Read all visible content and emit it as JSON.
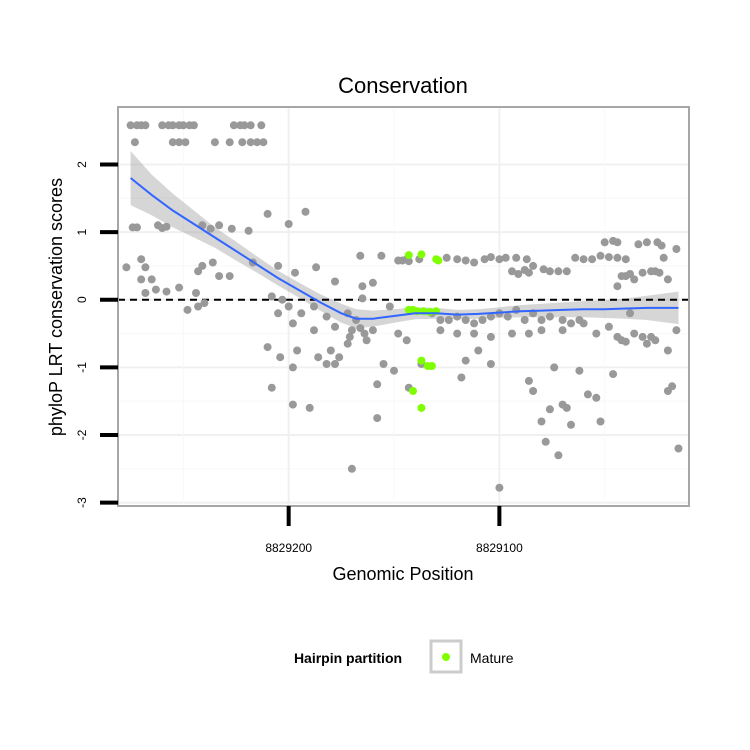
{
  "chart_data": {
    "type": "scatter",
    "title": "Conservation",
    "xlabel": "Genomic Position",
    "ylabel": "phyloP LRT conservation scores",
    "xlim": [
      8829281,
      8829010
    ],
    "ylim": [
      -3.05,
      2.85
    ],
    "x_reversed": true,
    "x_ticks": [
      8829200,
      8829100
    ],
    "x_tick_labels": [
      "8829200",
      "8829100"
    ],
    "y_ticks": [
      -3,
      -2,
      -1,
      0,
      1,
      2
    ],
    "y_tick_labels": [
      "-3",
      "-2",
      "-1",
      "0",
      "1",
      "2"
    ],
    "grid": true,
    "reference_line": {
      "y": 0,
      "style": "dashed",
      "color": "#000000"
    },
    "legend": {
      "title": "Hairpin partition",
      "position": "bottom",
      "entries": [
        {
          "label": "Mature",
          "color": "#7fff00"
        }
      ]
    },
    "series": [
      {
        "color": "#999999",
        "points": [
          [
            8829275,
            2.58
          ],
          [
            8829272,
            2.58
          ],
          [
            8829270,
            2.58
          ],
          [
            8829268,
            2.58
          ],
          [
            8829260,
            2.58
          ],
          [
            8829257,
            2.58
          ],
          [
            8829255,
            2.58
          ],
          [
            8829252,
            2.58
          ],
          [
            8829250,
            2.58
          ],
          [
            8829247,
            2.58
          ],
          [
            8829245,
            2.58
          ],
          [
            8829226,
            2.58
          ],
          [
            8829223,
            2.58
          ],
          [
            8829221,
            2.58
          ],
          [
            8829218,
            2.58
          ],
          [
            8829213,
            2.58
          ],
          [
            8829273,
            2.33
          ],
          [
            8829255,
            2.33
          ],
          [
            8829252,
            2.33
          ],
          [
            8829249,
            2.33
          ],
          [
            8829235,
            2.33
          ],
          [
            8829228,
            2.33
          ],
          [
            8829222,
            2.33
          ],
          [
            8829218,
            2.33
          ],
          [
            8829215,
            2.33
          ],
          [
            8829212,
            2.33
          ],
          [
            8829274,
            1.07
          ],
          [
            8829272,
            1.07
          ],
          [
            8829262,
            1.1
          ],
          [
            8829258,
            1.08
          ],
          [
            8829241,
            1.1
          ],
          [
            8829237,
            1.05
          ],
          [
            8829233,
            1.1
          ],
          [
            8829227,
            1.05
          ],
          [
            8829219,
            1.02
          ],
          [
            8829260,
            1.06
          ],
          [
            8829277,
            0.48
          ],
          [
            8829270,
            0.6
          ],
          [
            8829268,
            0.48
          ],
          [
            8829265,
            0.3
          ],
          [
            8829243,
            0.42
          ],
          [
            8829241,
            0.5
          ],
          [
            8829236,
            0.55
          ],
          [
            8829233,
            0.35
          ],
          [
            8829228,
            0.35
          ],
          [
            8829217,
            0.55
          ],
          [
            8829268,
            0.1
          ],
          [
            8829263,
            0.15
          ],
          [
            8829258,
            0.12
          ],
          [
            8829252,
            0.18
          ],
          [
            8829244,
            0.1
          ],
          [
            8829240,
            -0.05
          ],
          [
            8829243,
            -0.1
          ],
          [
            8829248,
            -0.15
          ],
          [
            8829270,
            0.3
          ],
          [
            8829210,
            1.27
          ],
          [
            8829192,
            1.3
          ],
          [
            8829200,
            1.12
          ],
          [
            8829205,
            0.5
          ],
          [
            8829197,
            0.4
          ],
          [
            8829187,
            0.48
          ],
          [
            8829178,
            0.27
          ],
          [
            8829165,
            0.2
          ],
          [
            8829160,
            0.25
          ],
          [
            8829166,
            0.65
          ],
          [
            8829208,
            0.05
          ],
          [
            8829203,
            0.0
          ],
          [
            8829200,
            -0.1
          ],
          [
            8829194,
            -0.2
          ],
          [
            8829188,
            -0.1
          ],
          [
            8829182,
            -0.25
          ],
          [
            8829178,
            -0.4
          ],
          [
            8829172,
            -0.2
          ],
          [
            8829168,
            -0.3
          ],
          [
            8829164,
            -0.5
          ],
          [
            8829170,
            -0.45
          ],
          [
            8829205,
            -0.2
          ],
          [
            8829198,
            -0.35
          ],
          [
            8829188,
            -0.45
          ],
          [
            8829180,
            -0.75
          ],
          [
            8829176,
            -0.85
          ],
          [
            8829172,
            -0.65
          ],
          [
            8829210,
            -0.7
          ],
          [
            8829204,
            -0.85
          ],
          [
            8829198,
            -1.0
          ],
          [
            8829196,
            -0.75
          ],
          [
            8829186,
            -0.85
          ],
          [
            8829182,
            -0.95
          ],
          [
            8829178,
            -0.95
          ],
          [
            8829171,
            -0.55
          ],
          [
            8829166,
            -0.42
          ],
          [
            8829163,
            -0.6
          ],
          [
            8829208,
            -1.3
          ],
          [
            8829198,
            -1.55
          ],
          [
            8829190,
            -1.6
          ],
          [
            8829170,
            -2.5
          ],
          [
            8829165,
            0.02
          ],
          [
            8829160,
            -0.45
          ],
          [
            8829152,
            -0.1
          ],
          [
            8829148,
            -0.5
          ],
          [
            8829144,
            -0.6
          ],
          [
            8829155,
            -0.95
          ],
          [
            8829150,
            -1.05
          ],
          [
            8829143,
            -1.3
          ],
          [
            8829137,
            -0.95
          ],
          [
            8829158,
            -1.25
          ],
          [
            8829158,
            -1.75
          ],
          [
            8829156,
            0.65
          ],
          [
            8829146,
            0.58
          ],
          [
            8829144,
            0.6
          ],
          [
            8829138,
            0.6
          ],
          [
            8829125,
            0.62
          ],
          [
            8829120,
            0.6
          ],
          [
            8829116,
            0.58
          ],
          [
            8829112,
            0.55
          ],
          [
            8829107,
            0.6
          ],
          [
            8829104,
            0.63
          ],
          [
            8829100,
            0.6
          ],
          [
            8829097,
            0.62
          ],
          [
            8829092,
            0.62
          ],
          [
            8829087,
            0.6
          ],
          [
            8829084,
            0.5
          ],
          [
            8829079,
            0.45
          ],
          [
            8829076,
            0.42
          ],
          [
            8829072,
            0.42
          ],
          [
            8829068,
            0.42
          ],
          [
            8829064,
            0.62
          ],
          [
            8829060,
            0.6
          ],
          [
            8829056,
            0.6
          ],
          [
            8829052,
            0.65
          ],
          [
            8829048,
            0.63
          ],
          [
            8829044,
            0.62
          ],
          [
            8829040,
            0.6
          ],
          [
            8829094,
            0.42
          ],
          [
            8829091,
            0.38
          ],
          [
            8829088,
            0.44
          ],
          [
            8829086,
            0.4
          ],
          [
            8829132,
            -0.2
          ],
          [
            8829128,
            -0.3
          ],
          [
            8829124,
            -0.3
          ],
          [
            8829120,
            -0.25
          ],
          [
            8829116,
            -0.3
          ],
          [
            8829112,
            -0.35
          ],
          [
            8829108,
            -0.3
          ],
          [
            8829104,
            -0.25
          ],
          [
            8829100,
            -0.2
          ],
          [
            8829096,
            -0.25
          ],
          [
            8829092,
            -0.15
          ],
          [
            8829088,
            -0.3
          ],
          [
            8829084,
            -0.2
          ],
          [
            8829080,
            -0.45
          ],
          [
            8829076,
            -0.25
          ],
          [
            8829070,
            -0.3
          ],
          [
            8829066,
            -0.35
          ],
          [
            8829062,
            -0.3
          ],
          [
            8829128,
            -0.45
          ],
          [
            8829120,
            -0.5
          ],
          [
            8829112,
            -0.5
          ],
          [
            8829104,
            -0.55
          ],
          [
            8829094,
            -0.5
          ],
          [
            8829086,
            -0.5
          ],
          [
            8829080,
            -0.3
          ],
          [
            8829070,
            -0.45
          ],
          [
            8829060,
            -0.35
          ],
          [
            8829054,
            -0.5
          ],
          [
            8829048,
            -0.4
          ],
          [
            8829044,
            -0.55
          ],
          [
            8829038,
            -0.2
          ],
          [
            8829148,
            0.58
          ],
          [
            8829143,
            0.57
          ],
          [
            8829110,
            -0.75
          ],
          [
            8829104,
            -0.95
          ],
          [
            8829116,
            -0.9
          ],
          [
            8829118,
            -1.15
          ],
          [
            8829086,
            -1.2
          ],
          [
            8829084,
            -1.35
          ],
          [
            8829074,
            -1.0
          ],
          [
            8829100,
            -2.78
          ],
          [
            8829080,
            -1.8
          ],
          [
            8829078,
            -2.1
          ],
          [
            8829076,
            -1.62
          ],
          [
            8829072,
            -2.3
          ],
          [
            8829070,
            -1.55
          ],
          [
            8829068,
            -1.6
          ],
          [
            8829066,
            -1.85
          ],
          [
            8829062,
            -1.05
          ],
          [
            8829058,
            -1.4
          ],
          [
            8829054,
            -1.45
          ],
          [
            8829052,
            -1.8
          ],
          [
            8829046,
            -1.1
          ],
          [
            8829050,
            0.85
          ],
          [
            8829046,
            0.87
          ],
          [
            8829044,
            0.85
          ],
          [
            8829034,
            0.82
          ],
          [
            8829030,
            0.85
          ],
          [
            8829025,
            0.85
          ],
          [
            8829023,
            0.8
          ],
          [
            8829042,
            0.35
          ],
          [
            8829040,
            0.35
          ],
          [
            8829038,
            0.38
          ],
          [
            8829036,
            0.3
          ],
          [
            8829032,
            0.4
          ],
          [
            8829028,
            0.42
          ],
          [
            8829026,
            0.42
          ],
          [
            8829024,
            0.4
          ],
          [
            8829020,
            0.3
          ],
          [
            8829044,
            0.2
          ],
          [
            8829042,
            -0.6
          ],
          [
            8829040,
            -0.62
          ],
          [
            8829036,
            -0.5
          ],
          [
            8829032,
            -0.55
          ],
          [
            8829030,
            -0.65
          ],
          [
            8829028,
            -0.55
          ],
          [
            8829026,
            -0.6
          ],
          [
            8829020,
            -0.75
          ],
          [
            8829016,
            -0.45
          ],
          [
            8829020,
            -1.35
          ],
          [
            8829018,
            -1.28
          ],
          [
            8829015,
            -2.2
          ],
          [
            8829016,
            0.75
          ],
          [
            8829022,
            0.62
          ]
        ]
      },
      {
        "name": "Mature",
        "color": "#7fff00",
        "points": [
          [
            8829143,
            0.66
          ],
          [
            8829137,
            0.67
          ],
          [
            8829130,
            0.6
          ],
          [
            8829129,
            0.58
          ],
          [
            8829143,
            -0.15
          ],
          [
            8829141,
            -0.15
          ],
          [
            8829139,
            -0.17
          ],
          [
            8829136,
            -0.17
          ],
          [
            8829133,
            -0.18
          ],
          [
            8829130,
            -0.17
          ],
          [
            8829137,
            -0.9
          ],
          [
            8829134,
            -0.98
          ],
          [
            8829132,
            -0.98
          ],
          [
            8829141,
            -1.35
          ],
          [
            8829137,
            -1.6
          ]
        ]
      }
    ],
    "smooth": {
      "color": "#3366ff",
      "ribbon_color": "#999999",
      "x": [
        8829275,
        8829265,
        8829255,
        8829245,
        8829235,
        8829225,
        8829215,
        8829205,
        8829195,
        8829185,
        8829175,
        8829168,
        8829160,
        8829150,
        8829140,
        8829130,
        8829120,
        8829110,
        8829100,
        8829090,
        8829080,
        8829070,
        8829060,
        8829050,
        8829040,
        8829030,
        8829020,
        8829015
      ],
      "y": [
        1.8,
        1.55,
        1.32,
        1.12,
        0.92,
        0.72,
        0.52,
        0.32,
        0.14,
        -0.04,
        -0.2,
        -0.28,
        -0.28,
        -0.24,
        -0.2,
        -0.2,
        -0.22,
        -0.21,
        -0.19,
        -0.17,
        -0.16,
        -0.15,
        -0.14,
        -0.14,
        -0.13,
        -0.12,
        -0.12,
        -0.12
      ],
      "lower": [
        1.4,
        1.25,
        1.07,
        0.92,
        0.77,
        0.58,
        0.4,
        0.21,
        0.03,
        -0.16,
        -0.34,
        -0.42,
        -0.4,
        -0.34,
        -0.29,
        -0.28,
        -0.29,
        -0.28,
        -0.27,
        -0.26,
        -0.26,
        -0.26,
        -0.26,
        -0.27,
        -0.28,
        -0.3,
        -0.34,
        -0.36
      ],
      "upper": [
        2.2,
        1.85,
        1.57,
        1.32,
        1.07,
        0.86,
        0.64,
        0.43,
        0.25,
        0.08,
        -0.06,
        -0.14,
        -0.16,
        -0.14,
        -0.11,
        -0.12,
        -0.15,
        -0.14,
        -0.11,
        -0.08,
        -0.06,
        -0.04,
        -0.02,
        -0.01,
        0.02,
        0.06,
        0.1,
        0.12
      ]
    }
  }
}
